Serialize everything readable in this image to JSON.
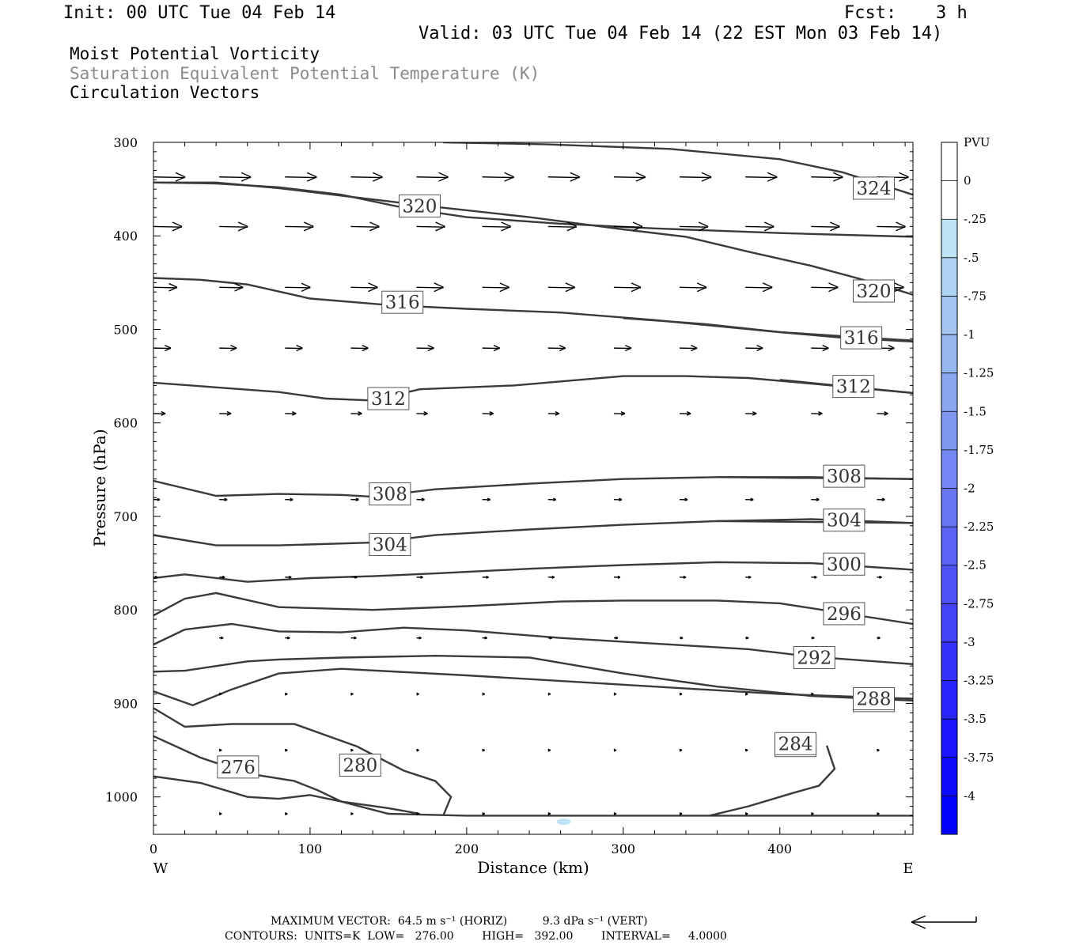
{
  "header": {
    "init": "Init: 00 UTC Tue 04 Feb 14",
    "fcst_label": "Fcst:",
    "fcst_value": "3 h",
    "valid": "Valid: 03 UTC Tue 04 Feb 14 (22 EST Mon 03 Feb 14)"
  },
  "fields": {
    "pv": "Moist Potential Vorticity",
    "theta": "Saturation Equivalent Potential Temperature (K)",
    "vectors": "Circulation Vectors"
  },
  "colors": {
    "contour": "#3a3a3a",
    "vector": "#000000",
    "theta_title": "#8a8a8a",
    "pv_light": "#bfe4f8",
    "pv_deep": "#0000ff"
  },
  "chart_data": {
    "type": "cross-section",
    "xlabel": "Distance (km)",
    "ylabel": "Pressure (hPa)",
    "xlim": [
      0,
      485
    ],
    "ylim": [
      300,
      1040
    ],
    "x_ticks": [
      0,
      100,
      200,
      300,
      400
    ],
    "y_ticks": [
      300,
      400,
      500,
      600,
      700,
      800,
      900,
      1000
    ],
    "x_end_labels": {
      "left": "W",
      "right": "E"
    },
    "theta_contours": [
      {
        "label": "324",
        "x": [
          185,
          250,
          330,
          400,
          440,
          485
        ],
        "p": [
          300,
          302,
          307,
          318,
          332,
          356
        ],
        "label_at": [
          460,
          349
        ]
      },
      {
        "label": "320",
        "x": [
          0,
          40,
          80,
          120,
          180,
          240,
          300,
          340,
          380,
          420,
          460,
          485
        ],
        "p": [
          343,
          343,
          349,
          357,
          369,
          380,
          393,
          401,
          417,
          432,
          450,
          463
        ],
        "label_at": [
          460,
          459
        ]
      },
      {
        "label": "320",
        "x": [
          0,
          40,
          80,
          120,
          160,
          200,
          260,
          320,
          400,
          485
        ],
        "p": [
          343,
          344,
          348,
          356,
          370,
          380,
          387,
          392,
          397,
          401
        ],
        "label_at": [
          170,
          368
        ]
      },
      {
        "label": "316",
        "x": [
          0,
          30,
          60,
          100,
          150,
          200,
          260,
          320,
          400,
          485
        ],
        "p": [
          445,
          447,
          452,
          467,
          474,
          478,
          482,
          490,
          503,
          512
        ],
        "label_at": [
          159,
          471
        ]
      },
      {
        "label": "316",
        "x": [
          300,
          350,
          400,
          440,
          485
        ],
        "p": [
          488,
          494,
          503,
          509,
          513
        ],
        "label_at": [
          452,
          509
        ]
      },
      {
        "label": "312",
        "x": [
          0,
          40,
          80,
          110,
          140,
          170,
          230,
          300,
          340,
          380,
          420,
          485
        ],
        "p": [
          557,
          562,
          567,
          574,
          576,
          564,
          560,
          550,
          550,
          552,
          558,
          568
        ],
        "label_at": [
          150,
          574
        ]
      },
      {
        "label": "312",
        "x": [
          400,
          485
        ],
        "p": [
          554,
          568
        ],
        "label_at": [
          447,
          561
        ]
      },
      {
        "label": "308",
        "x": [
          0,
          20,
          40,
          80,
          120,
          140,
          180,
          240,
          300,
          360,
          420,
          485
        ],
        "p": [
          662,
          670,
          678,
          676,
          677,
          679,
          671,
          665,
          660,
          658,
          658,
          660
        ],
        "label_at": [
          151,
          676
        ]
      },
      {
        "label": "308",
        "x": [
          360,
          485
        ],
        "p": [
          658,
          660
        ],
        "label_at": [
          441,
          657
        ]
      },
      {
        "label": "304",
        "x": [
          0,
          40,
          80,
          140,
          180,
          240,
          300,
          360,
          420,
          485
        ],
        "p": [
          720,
          731,
          731,
          728,
          720,
          714,
          709,
          705,
          703,
          707
        ],
        "label_at": [
          151,
          730
        ]
      },
      {
        "label": "304",
        "x": [
          360,
          485
        ],
        "p": [
          705,
          707
        ],
        "label_at": [
          441,
          704
        ]
      },
      {
        "label": "300",
        "x": [
          0,
          20,
          60,
          100,
          140,
          180,
          240,
          300,
          360,
          420,
          485
        ],
        "p": [
          766,
          762,
          770,
          766,
          764,
          761,
          756,
          752,
          749,
          750,
          757
        ],
        "label_at": [
          441,
          751
        ]
      },
      {
        "label": "296",
        "x": [
          0,
          20,
          40,
          80,
          140,
          200,
          260,
          300,
          360,
          400,
          485
        ],
        "p": [
          806,
          788,
          782,
          797,
          800,
          796,
          791,
          790,
          790,
          793,
          815
        ],
        "label_at": [
          441,
          804
        ]
      },
      {
        "label": "292",
        "x": [
          0,
          20,
          50,
          80,
          120,
          160,
          200,
          260,
          320,
          380,
          420,
          485
        ],
        "p": [
          837,
          821,
          815,
          823,
          824,
          819,
          822,
          830,
          836,
          842,
          850,
          858
        ],
        "label_at": [
          422,
          851
        ]
      },
      {
        "label": "288",
        "x": [
          0,
          20,
          40,
          60,
          80,
          120,
          180,
          240,
          300,
          360,
          420,
          485
        ],
        "p": [
          866,
          865,
          860,
          855,
          853,
          851,
          849,
          851,
          868,
          882,
          892,
          897
        ],
        "label_at": [
          460,
          897
        ]
      },
      {
        "label": "288",
        "x": [
          0,
          25,
          50,
          80,
          120,
          200,
          300,
          400,
          485
        ],
        "p": [
          887,
          902,
          885,
          868,
          863,
          870,
          880,
          890,
          895
        ],
        "label_at": [
          460,
          895
        ]
      },
      {
        "label": "284",
        "x": [
          0,
          20,
          50,
          90,
          130,
          160,
          180,
          190,
          185
        ],
        "p": [
          905,
          925,
          922,
          922,
          946,
          972,
          983,
          1000,
          1020
        ],
        "label_at": [
          410,
          945
        ]
      },
      {
        "label": "284",
        "x": [
          355,
          380,
          410,
          425,
          435,
          430
        ],
        "p": [
          1020,
          1010,
          995,
          988,
          970,
          945
        ],
        "label_at": [
          410,
          943
        ]
      },
      {
        "label": "280",
        "x": [
          0,
          30,
          60,
          90,
          105,
          120,
          150,
          170
        ],
        "p": [
          935,
          958,
          975,
          983,
          993,
          1005,
          1012,
          1018
        ],
        "label_at": [
          132,
          966
        ]
      },
      {
        "label": "276",
        "x": [
          0,
          30,
          60,
          80,
          100,
          120,
          150,
          200,
          300,
          400,
          485
        ],
        "p": [
          978,
          985,
          1000,
          1002,
          998,
          1005,
          1018,
          1020,
          1020,
          1020,
          1020
        ],
        "label_at": [
          54,
          968
        ]
      }
    ],
    "vector_rows": [
      {
        "p": 337,
        "x": [
          0,
          42,
          84,
          126,
          168,
          210,
          252,
          294,
          336,
          378,
          420,
          462
        ],
        "len": [
          40,
          40,
          40,
          40,
          40,
          40,
          40,
          40,
          40,
          40,
          40,
          40
        ]
      },
      {
        "p": 390,
        "x": [
          0,
          42,
          84,
          126,
          168,
          210,
          252,
          294,
          336,
          378,
          420,
          462
        ],
        "len": [
          36,
          36,
          36,
          36,
          36,
          36,
          36,
          36,
          36,
          36,
          36,
          36
        ]
      },
      {
        "p": 455,
        "x": [
          0,
          42,
          84,
          126,
          168,
          210,
          252,
          294,
          336,
          378,
          420,
          462
        ],
        "len": [
          30,
          30,
          32,
          34,
          34,
          34,
          34,
          34,
          34,
          34,
          34,
          34
        ]
      },
      {
        "p": 520,
        "x": [
          0,
          42,
          84,
          126,
          168,
          210,
          252,
          294,
          336,
          378,
          420,
          462
        ],
        "len": [
          22,
          22,
          22,
          22,
          22,
          22,
          22,
          22,
          22,
          22,
          22,
          22
        ]
      },
      {
        "p": 590,
        "x": [
          0,
          42,
          84,
          126,
          168,
          210,
          252,
          294,
          336,
          378,
          420,
          462
        ],
        "len": [
          15,
          15,
          14,
          14,
          14,
          14,
          14,
          14,
          14,
          14,
          14,
          14
        ]
      },
      {
        "p": 682,
        "x": [
          0,
          42,
          84,
          126,
          168,
          210,
          252,
          294,
          336,
          378,
          420,
          462
        ],
        "len": [
          8,
          10,
          10,
          10,
          10,
          10,
          10,
          10,
          10,
          10,
          10,
          10
        ]
      },
      {
        "p": 765,
        "x": [
          0,
          42,
          84,
          126,
          168,
          210,
          252,
          294,
          336,
          378,
          420,
          462
        ],
        "len": [
          5,
          7,
          8,
          8,
          8,
          8,
          8,
          8,
          8,
          7,
          7,
          6
        ]
      },
      {
        "p": 830,
        "x": [
          42,
          84,
          126,
          168,
          210,
          252,
          294,
          336,
          378,
          420,
          462
        ],
        "len": [
          5,
          6,
          7,
          6,
          6,
          5,
          5,
          4,
          4,
          4,
          4
        ]
      },
      {
        "p": 890,
        "x": [
          42,
          84,
          126,
          168,
          210,
          252,
          294,
          336,
          378,
          420,
          462
        ],
        "len": [
          3,
          3,
          3,
          3,
          3,
          3,
          3,
          3,
          3,
          3,
          3
        ]
      },
      {
        "p": 950,
        "x": [
          42,
          84,
          126,
          168,
          210,
          252,
          294,
          336,
          378,
          420,
          462
        ],
        "len": [
          3,
          3,
          3,
          3,
          3,
          3,
          3,
          3,
          3,
          3,
          3
        ]
      },
      {
        "p": 1018,
        "x": [
          42,
          84,
          126,
          168,
          210,
          252,
          294,
          336,
          378,
          420,
          462
        ],
        "len": [
          3,
          3,
          3,
          3,
          3,
          3,
          3,
          3,
          3,
          3,
          3
        ]
      }
    ],
    "pv_patch": {
      "x": 262,
      "p": 1018,
      "value": -0.25
    },
    "colorbar": {
      "title": "PVU",
      "ticks": [
        "0",
        "-.25",
        "-.5",
        "-.75",
        "-1",
        "-1.25",
        "-1.5",
        "-1.75",
        "-2",
        "-2.25",
        "-2.5",
        "-2.75",
        "-3",
        "-3.25",
        "-3.5",
        "-3.75",
        "-4"
      ],
      "colors": [
        "#ffffff",
        "#ffffff",
        "#bfe4f8",
        "#b0d4f6",
        "#a3c6f2",
        "#98b8f0",
        "#8aa6ef",
        "#7f98f0",
        "#7487f2",
        "#6875f4",
        "#5c64f5",
        "#4f53f7",
        "#4242f8",
        "#3533f9",
        "#2824fb",
        "#1a15fc",
        "#0d09fd",
        "#0000ff"
      ]
    }
  },
  "footer": {
    "max_vector": "MAXIMUM VECTOR:  64.5 m s⁻¹ (HORIZ)          9.3 dPa s⁻¹ (VERT)",
    "contours": "CONTOURS:  UNITS=K  LOW=   276.00        HIGH=   392.00        INTERVAL=     4.0000"
  }
}
